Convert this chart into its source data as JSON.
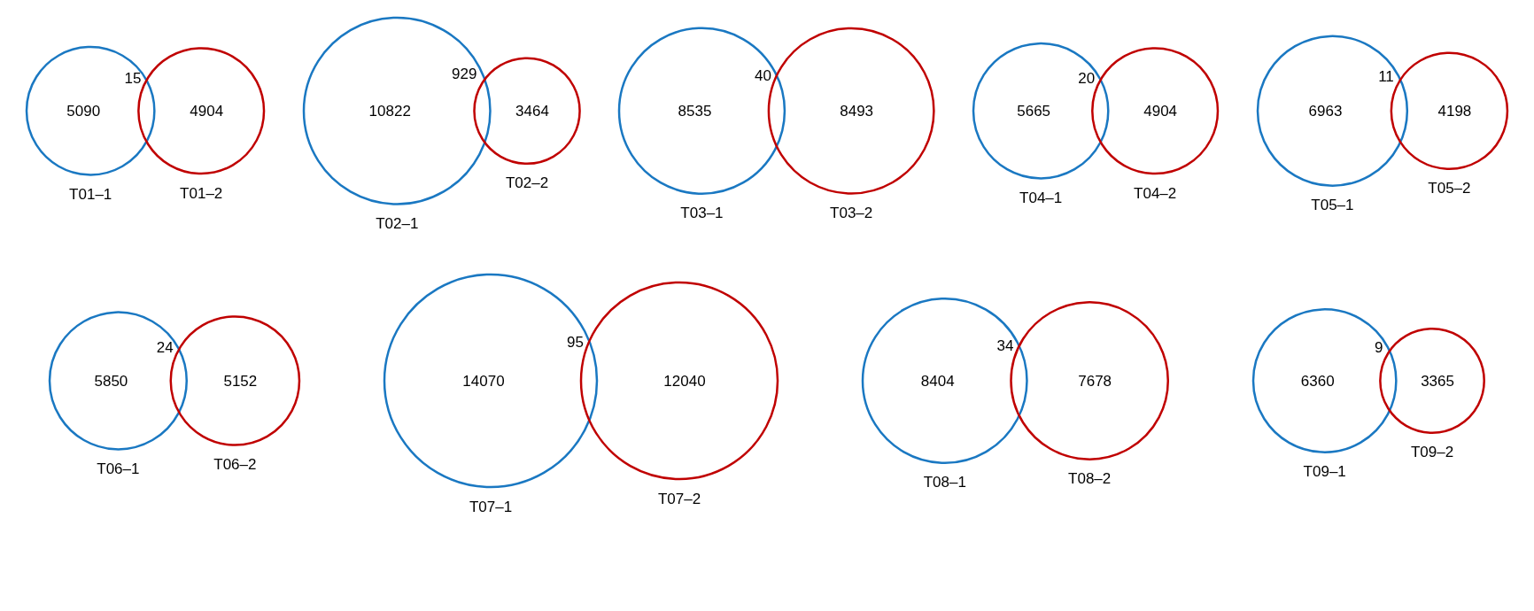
{
  "chart_data": [
    {
      "type": "other",
      "categories": [
        "T01–1",
        "T01–2"
      ],
      "values": [
        5090,
        4904
      ],
      "colors": [
        "#1a78c2",
        "#c00000"
      ],
      "annotations": [
        "15"
      ],
      "data_labels": true
    },
    {
      "type": "other",
      "categories": [
        "T02–1",
        "T02–2"
      ],
      "values": [
        10822,
        3464
      ],
      "colors": [
        "#1a78c2",
        "#c00000"
      ],
      "annotations": [
        "929"
      ],
      "data_labels": true
    },
    {
      "type": "other",
      "categories": [
        "T03–1",
        "T03–2"
      ],
      "values": [
        8535,
        8493
      ],
      "colors": [
        "#1a78c2",
        "#c00000"
      ],
      "annotations": [
        "40"
      ],
      "data_labels": true
    },
    {
      "type": "other",
      "categories": [
        "T04–1",
        "T04–2"
      ],
      "values": [
        5665,
        4904
      ],
      "colors": [
        "#1a78c2",
        "#c00000"
      ],
      "annotations": [
        "20"
      ],
      "data_labels": true
    },
    {
      "type": "other",
      "categories": [
        "T05–1",
        "T05–2"
      ],
      "values": [
        6963,
        4198
      ],
      "colors": [
        "#1a78c2",
        "#c00000"
      ],
      "annotations": [
        "11"
      ],
      "data_labels": true
    },
    {
      "type": "other",
      "categories": [
        "T06–1",
        "T06–2"
      ],
      "values": [
        5850,
        5152
      ],
      "colors": [
        "#1a78c2",
        "#c00000"
      ],
      "annotations": [
        "24"
      ],
      "data_labels": true
    },
    {
      "type": "other",
      "categories": [
        "T07–1",
        "T07–2"
      ],
      "values": [
        14070,
        12040
      ],
      "colors": [
        "#1a78c2",
        "#c00000"
      ],
      "annotations": [
        "95"
      ],
      "data_labels": true
    },
    {
      "type": "other",
      "categories": [
        "T08–1",
        "T08–2"
      ],
      "values": [
        8404,
        7678
      ],
      "colors": [
        "#1a78c2",
        "#c00000"
      ],
      "annotations": [
        "34"
      ],
      "data_labels": true
    },
    {
      "type": "other",
      "categories": [
        "T09–1",
        "T09–2"
      ],
      "values": [
        6360,
        3365
      ],
      "colors": [
        "#1a78c2",
        "#c00000"
      ],
      "annotations": [
        "9"
      ],
      "data_labels": true
    }
  ]
}
